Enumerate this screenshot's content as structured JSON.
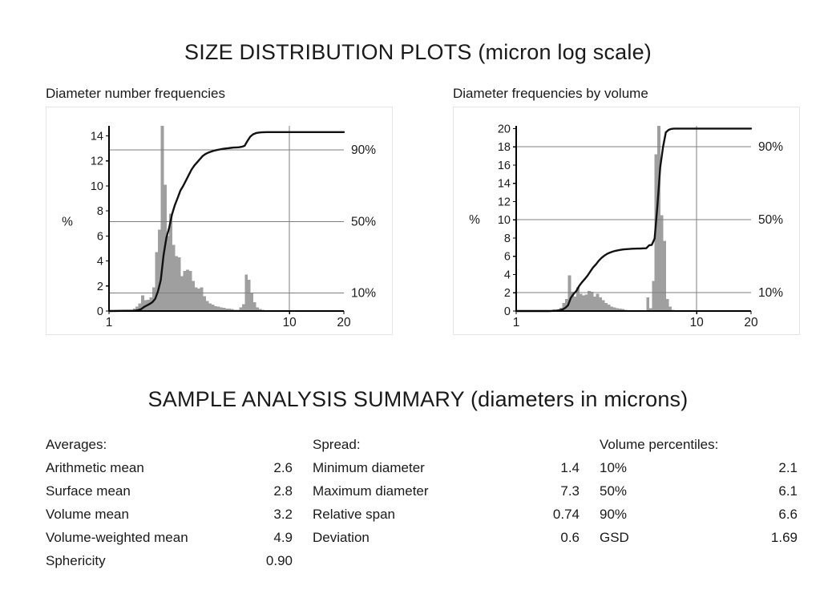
{
  "page": {
    "title": "SIZE DISTRIBUTION PLOTS (micron log scale)",
    "summary_title": "SAMPLE ANALYSIS SUMMARY (diameters in microns)"
  },
  "colors": {
    "bar": "#9f9f9f",
    "curve": "#111111",
    "grid": "#7f7f7f",
    "axis": "#000000",
    "panel_border": "#e4e4e4",
    "text": "#1a1a1a"
  },
  "chart_data": [
    {
      "type": "bar",
      "subtype": "histogram-with-cumulative-curve",
      "title": "Diameter number frequencies",
      "ylabel": "%",
      "x_log": true,
      "xlim": [
        1,
        20
      ],
      "xticks": [
        1,
        10,
        20
      ],
      "x_gridlines": [
        10
      ],
      "ylim": [
        0,
        14.8
      ],
      "yticks": [
        0,
        2,
        4,
        6,
        8,
        10,
        12,
        14
      ],
      "pct_gridlines": [
        10,
        50,
        90
      ],
      "pct_full_scale": 14.3,
      "x": [
        1.38,
        1.43,
        1.482,
        1.536,
        1.592,
        1.649,
        1.709,
        1.771,
        1.836,
        1.902,
        1.971,
        2.043,
        2.117,
        2.194,
        2.273,
        2.356,
        2.441,
        2.53,
        2.622,
        2.717,
        2.815,
        2.918,
        3.024,
        3.133,
        3.247,
        3.365,
        3.487,
        3.614,
        3.745,
        3.881,
        4.022,
        4.168,
        4.319,
        4.476,
        4.638,
        4.807,
        4.981,
        5.162,
        5.349,
        5.543,
        5.745,
        5.953,
        6.169,
        6.393,
        6.625,
        6.866,
        7.115,
        7.373
      ],
      "values": [
        0.2,
        0.35,
        0.6,
        1.25,
        0.85,
        0.9,
        1.1,
        1.9,
        4.7,
        6.5,
        14.8,
        10.1,
        6.0,
        7.8,
        5.3,
        4.4,
        4.3,
        2.8,
        3.2,
        3.3,
        3.2,
        2.4,
        1.9,
        1.8,
        1.9,
        1.2,
        0.8,
        0.6,
        0.5,
        0.4,
        0.35,
        0.3,
        0.25,
        0.2,
        0.2,
        0.15,
        0.1,
        0.1,
        0.3,
        0.55,
        2.9,
        2.5,
        1.4,
        0.7,
        0.3,
        0.15,
        0.1,
        0.05
      ]
    },
    {
      "type": "bar",
      "subtype": "histogram-with-cumulative-curve",
      "title": "Diameter frequencies by volume",
      "ylabel": "%",
      "x_log": true,
      "xlim": [
        1,
        20
      ],
      "xticks": [
        1,
        10,
        20
      ],
      "x_gridlines": [
        10
      ],
      "ylim": [
        0,
        20.3
      ],
      "yticks": [
        0,
        2,
        4,
        6,
        8,
        10,
        12,
        14,
        16,
        18,
        20
      ],
      "pct_gridlines": [
        10,
        50,
        90
      ],
      "pct_full_scale": 20,
      "x": [
        1.38,
        1.43,
        1.482,
        1.536,
        1.592,
        1.649,
        1.709,
        1.771,
        1.836,
        1.902,
        1.971,
        2.043,
        2.117,
        2.194,
        2.273,
        2.356,
        2.441,
        2.53,
        2.622,
        2.717,
        2.815,
        2.918,
        3.024,
        3.133,
        3.247,
        3.365,
        3.487,
        3.614,
        3.745,
        3.881,
        4.022,
        4.168,
        4.319,
        4.476,
        4.638,
        4.807,
        4.981,
        5.162,
        5.349,
        5.543,
        5.745,
        5.953,
        6.169,
        6.393,
        6.625,
        6.866,
        7.115,
        7.373
      ],
      "values": [
        0,
        0,
        0,
        0.05,
        0.1,
        0.1,
        0.15,
        0.35,
        0.9,
        1.3,
        3.9,
        2.1,
        1.6,
        2.6,
        1.9,
        1.7,
        1.8,
        2.2,
        2.1,
        1.6,
        1.9,
        1.5,
        1.2,
        0.9,
        0.7,
        0.5,
        0.4,
        0.3,
        0.25,
        0.2,
        0.15,
        0.1,
        0.1,
        0.05,
        0.05,
        0.05,
        0.05,
        0.05,
        1.5,
        0.3,
        3.3,
        17.2,
        20.3,
        10.5,
        7.7,
        1.3,
        0.5,
        0.15
      ]
    }
  ],
  "summary": {
    "columns": [
      {
        "header": "Averages:",
        "rows": [
          {
            "label": "Arithmetic mean",
            "value": "2.6"
          },
          {
            "label": "Surface mean",
            "value": "2.8"
          },
          {
            "label": "Volume mean",
            "value": "3.2"
          },
          {
            "label": "Volume-weighted mean",
            "value": "4.9"
          },
          {
            "label": "Sphericity",
            "value": "0.90"
          }
        ]
      },
      {
        "header": "Spread:",
        "rows": [
          {
            "label": "Minimum diameter",
            "value": "1.4"
          },
          {
            "label": "Maximum diameter",
            "value": "7.3"
          },
          {
            "label": "Relative span",
            "value": "0.74"
          },
          {
            "label": "Deviation",
            "value": "0.6"
          }
        ]
      },
      {
        "header": "Volume percentiles:",
        "rows": [
          {
            "label": "10%",
            "value": "2.1"
          },
          {
            "label": "50%",
            "value": "6.1"
          },
          {
            "label": "90%",
            "value": "6.6"
          },
          {
            "label": "GSD",
            "value": "1.69"
          }
        ]
      }
    ]
  }
}
